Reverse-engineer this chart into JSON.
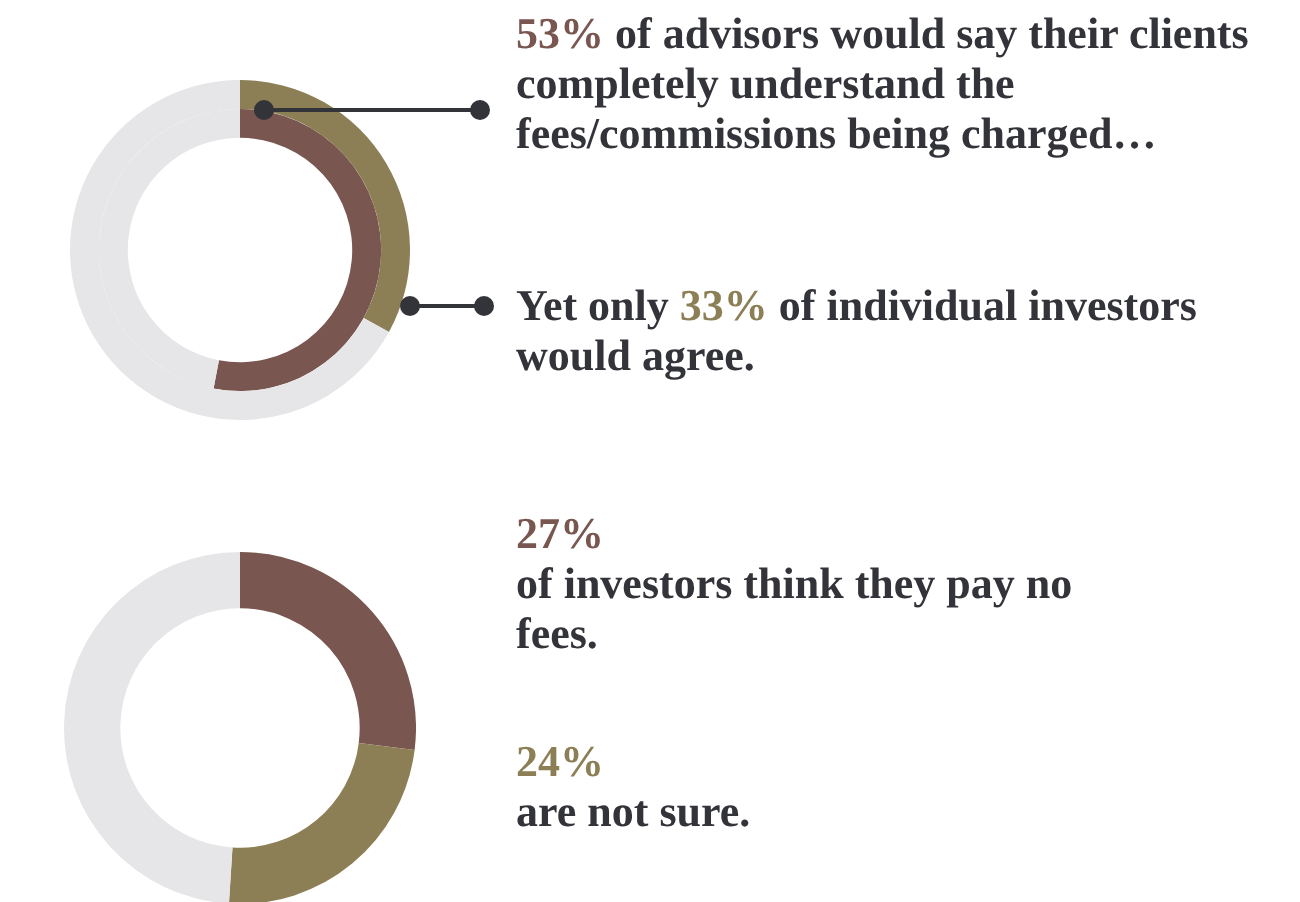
{
  "chart_data": [
    {
      "type": "donut",
      "series": [
        {
          "values": [
            53,
            47
          ],
          "colors": [
            "#7a5650",
            "#e6e6e8"
          ]
        },
        {
          "values": [
            33,
            67
          ],
          "colors": [
            "#8c7f55",
            "#e6e6e8"
          ]
        }
      ],
      "annotations": [
        "53% of advisors would say their clients completely understand the fees/commissions being charged…",
        "Yet only 33% of individual investors would agree."
      ]
    },
    {
      "type": "donut",
      "values": [
        27,
        24,
        49
      ],
      "colors": [
        "#7a5650",
        "#8c7f55",
        "#e6e6e8"
      ],
      "annotations": [
        "27%\nof investors think they pay no fees.",
        "24%\nare not sure."
      ]
    }
  ]
}
